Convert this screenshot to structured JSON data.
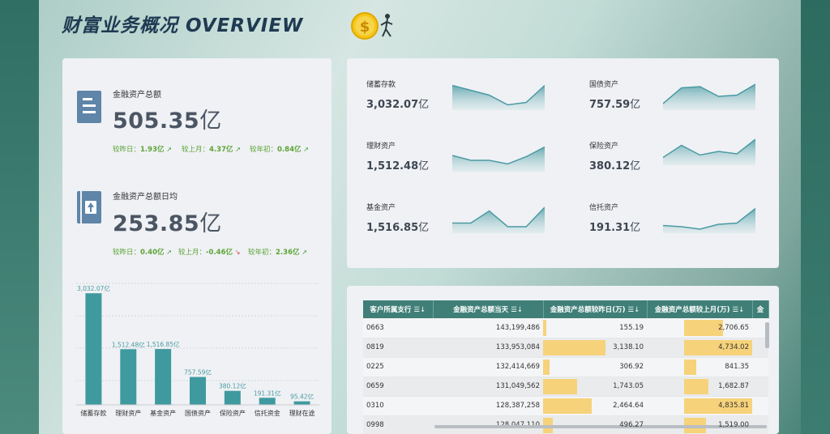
{
  "header": {
    "title": "财富业务概况 OVERVIEW"
  },
  "kpis": [
    {
      "label": "金融资产总额",
      "value": "505.35",
      "unit": "亿",
      "comparisons": [
        {
          "label": "较昨日：",
          "value": "1.93亿",
          "trend": "up"
        },
        {
          "label": "较上月：",
          "value": "4.37亿",
          "trend": "up"
        },
        {
          "label": "较年初：",
          "value": "0.84亿",
          "trend": "up"
        }
      ]
    },
    {
      "label": "金融资产总额日均",
      "value": "253.85",
      "unit": "亿",
      "comparisons": [
        {
          "label": "较昨日：",
          "value": "0.40亿",
          "trend": "up"
        },
        {
          "label": "较上月：",
          "value": "-0.46亿",
          "trend": "down"
        },
        {
          "label": "较年初：",
          "value": "2.36亿",
          "trend": "up"
        }
      ]
    }
  ],
  "sparks": [
    {
      "label": "储蓄存款",
      "value": "3,032.07",
      "unit": "亿",
      "trend": [
        0.95,
        0.75,
        0.55,
        0.15,
        0.25,
        0.95
      ]
    },
    {
      "label": "国债资产",
      "value": "757.59",
      "unit": "亿",
      "trend": [
        0.2,
        0.85,
        0.9,
        0.5,
        0.55,
        1.0
      ]
    },
    {
      "label": "理财资产",
      "value": "1,512.48",
      "unit": "亿",
      "trend": [
        0.6,
        0.4,
        0.4,
        0.25,
        0.55,
        0.95
      ]
    },
    {
      "label": "保险资产",
      "value": "380.12",
      "unit": "亿",
      "trend": [
        0.25,
        0.75,
        0.35,
        0.5,
        0.4,
        1.0
      ]
    },
    {
      "label": "基金资产",
      "value": "1,516.85",
      "unit": "亿",
      "trend": [
        0.35,
        0.35,
        0.85,
        0.2,
        0.2,
        1.0
      ]
    },
    {
      "label": "信托资产",
      "value": "191.31",
      "unit": "亿",
      "trend": [
        0.25,
        0.2,
        0.1,
        0.3,
        0.35,
        0.95
      ]
    }
  ],
  "chart_data": {
    "type": "bar",
    "categories": [
      "储蓄存款",
      "理财资产",
      "基金资产",
      "国债资产",
      "保险资产",
      "信托资金",
      "理财在途"
    ],
    "values": [
      3032.07,
      1512.48,
      1516.85,
      757.59,
      380.12,
      191.31,
      95.42
    ],
    "data_labels": [
      "3,032.07亿",
      "1,512.48亿",
      "1,516.85亿",
      "757.59亿",
      "380.12亿",
      "191.31亿",
      "95.42亿"
    ],
    "ylim": [
      0,
      3300
    ],
    "grid": true,
    "color": "#3f9aa0"
  },
  "table": {
    "columns": [
      "客户所属支行",
      "金融资产总额当天",
      "金融资产总额较昨日(万)",
      "金融资产总额较上月(万)",
      "金"
    ],
    "sort_icon": "☰↓",
    "rows": [
      {
        "branch": "0663",
        "today": "143,199,486",
        "vs_yesterday": "155.19",
        "vs_yesterday_level": 0.03,
        "vs_month": "2,706.65",
        "vs_month_level": 0.56
      },
      {
        "branch": "0819",
        "today": "133,953,084",
        "vs_yesterday": "3,138.10",
        "vs_yesterday_level": 0.6,
        "vs_month": "4,734.02",
        "vs_month_level": 0.98
      },
      {
        "branch": "0225",
        "today": "132,414,669",
        "vs_yesterday": "306.92",
        "vs_yesterday_level": 0.06,
        "vs_month": "841.35",
        "vs_month_level": 0.17
      },
      {
        "branch": "0659",
        "today": "131,049,562",
        "vs_yesterday": "1,743.05",
        "vs_yesterday_level": 0.33,
        "vs_month": "1,682.87",
        "vs_month_level": 0.35
      },
      {
        "branch": "0310",
        "today": "128,387,258",
        "vs_yesterday": "2,464.64",
        "vs_yesterday_level": 0.47,
        "vs_month": "4,835.81",
        "vs_month_level": 1.0
      },
      {
        "branch": "0998",
        "today": "128,047,110",
        "vs_yesterday": "496.27",
        "vs_yesterday_level": 0.09,
        "vs_month": "1,519.00",
        "vs_month_level": 0.31
      }
    ]
  },
  "colors": {
    "accent": "#3f9aa0",
    "header": "#3f7f77",
    "bar_highlight": "#f6d27a",
    "up": "#3c9a2f",
    "down": "#d84545"
  }
}
